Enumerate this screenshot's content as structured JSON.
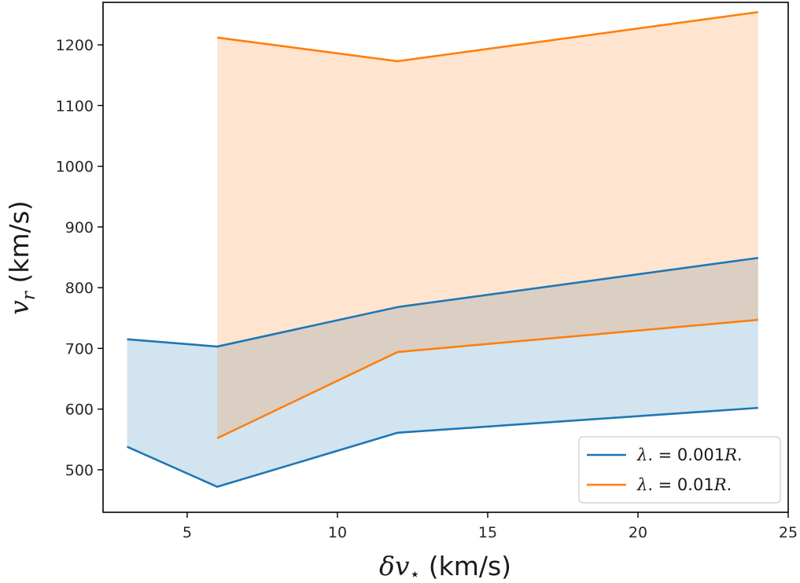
{
  "chart_data": {
    "type": "area",
    "title": "",
    "xlabel": "δv⋆ (km/s)",
    "ylabel": "v_r (km/s)",
    "xlim": [
      2.2,
      25.0
    ],
    "ylim": [
      430,
      1270
    ],
    "xticks": [
      5,
      10,
      15,
      20,
      25
    ],
    "yticks": [
      500,
      600,
      700,
      800,
      900,
      1000,
      1100,
      1200
    ],
    "grid": false,
    "legend_position": "lower-right",
    "series": [
      {
        "name": "λ⋆ = 0.001R⋆",
        "legend_label": {
          "a": "λ",
          "b": ". = 0.001",
          "c": "R",
          "d": "."
        },
        "color": "#1f77b4",
        "fill_color": "#1f77b4",
        "fill_opacity": 0.2,
        "x": [
          3,
          6,
          12,
          24
        ],
        "upper": [
          715,
          703,
          768,
          849
        ],
        "lower": [
          538,
          472,
          561,
          602
        ]
      },
      {
        "name": "λ⋆ = 0.01R⋆",
        "legend_label": {
          "a": "λ",
          "b": ". = 0.01",
          "c": "R",
          "d": "."
        },
        "color": "#ff7f0e",
        "fill_color": "#ff7f0e",
        "fill_opacity": 0.2,
        "x": [
          6,
          12,
          24
        ],
        "upper": [
          1212,
          1173,
          1254
        ],
        "lower": [
          552,
          694,
          747
        ]
      }
    ],
    "axis_text": {
      "x": {
        "a": "δ",
        "b": "v",
        "c": "⋆",
        "d": " (km/s)"
      },
      "y": {
        "a": "v",
        "b": "r",
        "c": " (km/s)"
      }
    }
  }
}
